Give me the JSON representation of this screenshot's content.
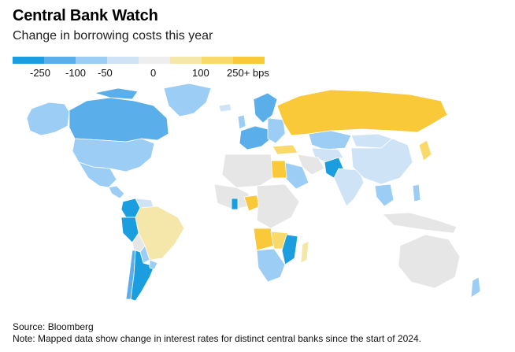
{
  "header": {
    "title": "Central Bank Watch",
    "subtitle": "Change in borrowing costs this year"
  },
  "legend": {
    "colors": [
      "#1a9ee0",
      "#5aaeea",
      "#9ccdf4",
      "#cfe3f6",
      "#eeeeee",
      "#f5e6aa",
      "#f9d96a",
      "#f9c93a"
    ],
    "labels": [
      "-250",
      "-100",
      "-50",
      "0",
      "100",
      "250+ bps"
    ]
  },
  "map_colors": {
    "strong_cut": "#1a9ee0",
    "cut_100": "#5aaeea",
    "cut_50": "#9ccdf4",
    "cut_small": "#cfe3f6",
    "none": "#e6e6e6",
    "hike_small": "#f5e6aa",
    "hike_100": "#f9d96a",
    "hike_250": "#f9c93a"
  },
  "footer": {
    "source": "Source: Bloomberg",
    "note": "Note: Mapped data show change in interest rates for distinct central banks since the start of 2024."
  }
}
